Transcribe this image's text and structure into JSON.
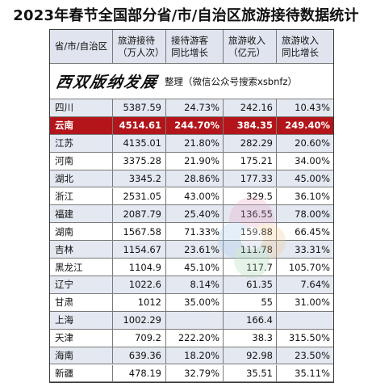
{
  "title": "2023年春节全国部分省/市/自治区旅游接待数据统计",
  "headers": [
    "省/市/自治区",
    "旅游接待\n（万人次）",
    "接待游客\n同比增长",
    "旅游收入\n（亿元）",
    "旅游收入\n同比增长"
  ],
  "banner": {
    "calligraphy": "西双版纳发展",
    "note": "整理（微信公众号搜索xsbnfz）"
  },
  "rows": [
    [
      "四川",
      "5387.59",
      "24.73%",
      "242.16",
      "10.43%"
    ],
    [
      "云南",
      "4514.61",
      "244.70%",
      "384.35",
      "249.40%"
    ],
    [
      "江苏",
      "4135.01",
      "21.80%",
      "282.29",
      "20.60%"
    ],
    [
      "河南",
      "3375.28",
      "21.90%",
      "175.21",
      "34.00%"
    ],
    [
      "湖北",
      "3345.2",
      "28.86%",
      "177.33",
      "45.00%"
    ],
    [
      "浙江",
      "2531.05",
      "43.00%",
      "329.5",
      "36.10%"
    ],
    [
      "福建",
      "2087.79",
      "25.40%",
      "136.55",
      "78.00%"
    ],
    [
      "湖南",
      "1567.58",
      "71.33%",
      "159.88",
      "66.45%"
    ],
    [
      "吉林",
      "1154.67",
      "23.61%",
      "111.78",
      "33.31%"
    ],
    [
      "黑龙江",
      "1104.9",
      "45.10%",
      "117.7",
      "105.70%"
    ],
    [
      "辽宁",
      "1022.6",
      "8.14%",
      "61.35",
      "7.64%"
    ],
    [
      "甘肃",
      "1012",
      "35.00%",
      "55",
      "31.00%"
    ],
    [
      "上海",
      "1002.29",
      "",
      "166.4",
      ""
    ],
    [
      "天津",
      "709.2",
      "222.20%",
      "38.3",
      "315.50%"
    ],
    [
      "海南",
      "639.36",
      "18.20%",
      "92.98",
      "23.50%"
    ],
    [
      "新疆",
      "478.19",
      "32.79%",
      "35.51",
      "35.11%"
    ]
  ],
  "highlight_row": "云南",
  "colors": {
    "highlight": "#b3151a",
    "header_bg": "#dfe4ee",
    "stripe": "#e4e8f1"
  }
}
